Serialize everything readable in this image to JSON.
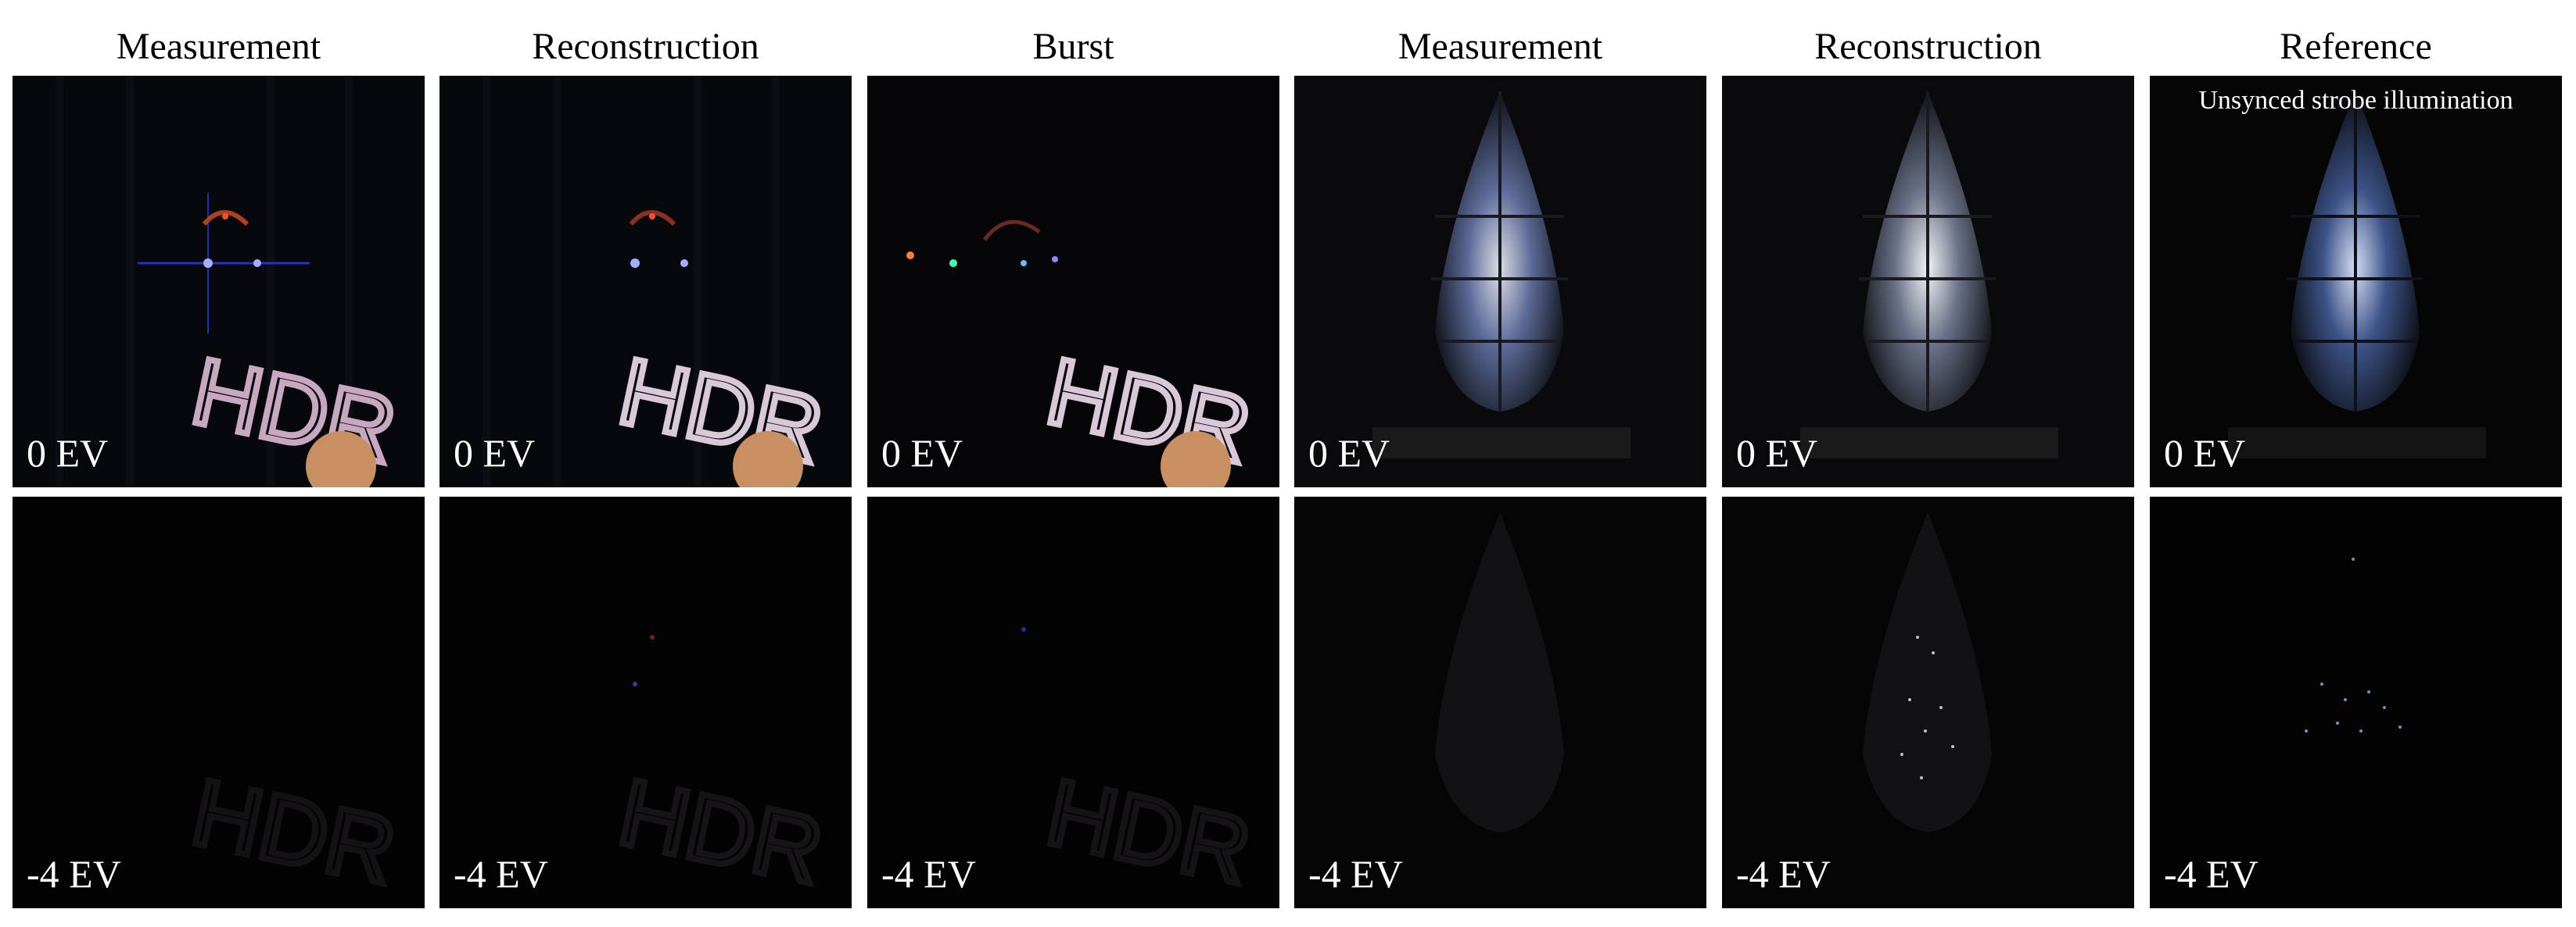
{
  "columns": [
    {
      "title": "Measurement"
    },
    {
      "title": "Reconstruction"
    },
    {
      "title": "Burst"
    },
    {
      "title": "Measurement"
    },
    {
      "title": "Reconstruction"
    },
    {
      "title": "Reference",
      "note": "Unsynced strobe illumination"
    }
  ],
  "rows": [
    {
      "exposure_label": "0 EV"
    },
    {
      "exposure_label": "-4 EV"
    }
  ],
  "scenes": {
    "left_group": {
      "sign_text": "HDR"
    }
  }
}
